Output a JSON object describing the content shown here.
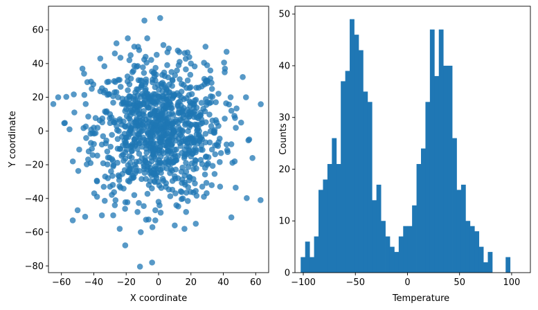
{
  "chart_data": [
    {
      "type": "scatter",
      "title": "",
      "xlabel": "X coordinate",
      "ylabel": "Y coordinate",
      "xlim": [
        -68,
        68
      ],
      "ylim": [
        -84,
        74
      ],
      "xticks": [
        -60,
        -40,
        -20,
        0,
        20,
        40,
        60
      ],
      "yticks": [
        -80,
        -60,
        -40,
        -20,
        0,
        20,
        40,
        60
      ],
      "color": "#1f77b4",
      "alpha": 0.75,
      "marker": "circle",
      "n_points_approx": 1000,
      "points": [
        [
          1,
          67
        ],
        [
          -7,
          55
        ],
        [
          3,
          51
        ],
        [
          -15,
          50
        ],
        [
          29,
          50
        ],
        [
          -19,
          55
        ],
        [
          -26,
          52
        ],
        [
          -27,
          46
        ],
        [
          42,
          47
        ],
        [
          -12,
          48
        ],
        [
          -8,
          44
        ],
        [
          -36,
          43
        ],
        [
          -47,
          37
        ],
        [
          -46,
          34
        ],
        [
          -44,
          29
        ],
        [
          -18,
          42
        ],
        [
          13,
          41
        ],
        [
          20,
          40
        ],
        [
          30,
          39
        ],
        [
          41,
          37
        ],
        [
          52,
          32
        ],
        [
          54,
          20
        ],
        [
          -62,
          20
        ],
        [
          -65,
          16
        ],
        [
          -52,
          11
        ],
        [
          -45,
          16
        ],
        [
          -33,
          24
        ],
        [
          -25,
          20
        ],
        [
          -10,
          22
        ],
        [
          5,
          25
        ],
        [
          18,
          30
        ],
        [
          33,
          25
        ],
        [
          45,
          12
        ],
        [
          51,
          5
        ],
        [
          -55,
          1
        ],
        [
          -40,
          2
        ],
        [
          -24,
          7
        ],
        [
          -12,
          10
        ],
        [
          3,
          15
        ],
        [
          20,
          10
        ],
        [
          37,
          3
        ],
        [
          56,
          -5
        ],
        [
          -49,
          -11
        ],
        [
          -35,
          -8
        ],
        [
          -20,
          -4
        ],
        [
          -5,
          -2
        ],
        [
          10,
          0
        ],
        [
          25,
          -3
        ],
        [
          42,
          -8
        ],
        [
          -42,
          -19
        ],
        [
          -28,
          -21
        ],
        [
          -12,
          -18
        ],
        [
          2,
          -12
        ],
        [
          16,
          -15
        ],
        [
          30,
          -20
        ],
        [
          47,
          -18
        ],
        [
          58,
          -16
        ],
        [
          -33,
          -27
        ],
        [
          -18,
          -30
        ],
        [
          -3,
          -25
        ],
        [
          12,
          -28
        ],
        [
          27,
          -33
        ],
        [
          38,
          -33
        ],
        [
          -30,
          -33
        ],
        [
          -15,
          -38
        ],
        [
          0,
          -42
        ],
        [
          15,
          -40
        ],
        [
          28,
          -39
        ],
        [
          -38,
          -39
        ],
        [
          -27,
          -44
        ],
        [
          -13,
          -48
        ],
        [
          -2,
          -47
        ],
        [
          11,
          -44
        ],
        [
          17,
          -48
        ],
        [
          -50,
          -47
        ],
        [
          -53,
          -53
        ],
        [
          -35,
          -50
        ],
        [
          -28,
          -50
        ],
        [
          -24,
          -58
        ],
        [
          -11,
          -60
        ],
        [
          -2,
          -53
        ],
        [
          10,
          -56
        ],
        [
          16,
          -58
        ],
        [
          23,
          -55
        ],
        [
          63,
          -41
        ],
        [
          -4,
          -78
        ],
        [
          -8,
          18
        ],
        [
          -4,
          5
        ],
        [
          6,
          -6
        ],
        [
          -14,
          -8
        ],
        [
          14,
          20
        ],
        [
          -22,
          -14
        ],
        [
          22,
          16
        ],
        [
          8,
          35
        ],
        [
          -2,
          30
        ],
        [
          -30,
          10
        ],
        [
          33,
          -11
        ],
        [
          -6,
          -32
        ],
        [
          4,
          8
        ],
        [
          -9,
          2
        ]
      ]
    },
    {
      "type": "bar",
      "subtype": "histogram",
      "title": "",
      "xlabel": "Temperature",
      "ylabel": "Counts",
      "xlim": [
        -108,
        118
      ],
      "ylim": [
        0,
        51.5
      ],
      "xticks": [
        -100,
        -50,
        0,
        50,
        100
      ],
      "yticks": [
        0,
        10,
        20,
        30,
        40,
        50
      ],
      "color": "#1f77b4",
      "bin_start": -102.5,
      "bin_width": 4.277,
      "values": [
        3,
        6,
        3,
        7,
        16,
        18,
        21,
        26,
        21,
        37,
        39,
        49,
        46,
        43,
        35,
        33,
        14,
        17,
        10,
        7,
        5,
        4,
        7,
        9,
        9,
        13,
        21,
        24,
        33,
        47,
        38,
        47,
        40,
        40,
        26,
        16,
        17,
        10,
        9,
        8,
        5,
        2,
        4,
        0,
        0,
        0,
        3
      ]
    }
  ]
}
